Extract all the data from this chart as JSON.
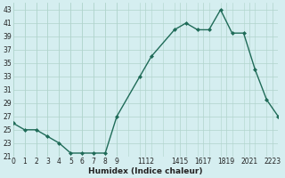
{
  "x": [
    0,
    1,
    2,
    3,
    4,
    5,
    6,
    7,
    8,
    9,
    11,
    12,
    14,
    15,
    16,
    17,
    18,
    19,
    20,
    21,
    22,
    23
  ],
  "y": [
    26,
    25,
    25,
    24,
    23,
    21.5,
    21.5,
    21.5,
    21.5,
    27,
    33,
    36,
    40,
    41,
    40,
    40,
    43,
    39.5,
    39.5,
    34,
    29.5,
    27
  ],
  "line_color": "#1f6b58",
  "marker": "D",
  "marker_size": 2.0,
  "bg_color": "#d5eef0",
  "grid_color": "#b0d4cc",
  "xlabel": "Humidex (Indice chaleur)",
  "xlim": [
    0,
    23
  ],
  "ylim": [
    21,
    44
  ],
  "yticks": [
    21,
    23,
    25,
    27,
    29,
    31,
    33,
    35,
    37,
    39,
    41,
    43
  ],
  "font_color": "#222222",
  "linewidth": 1.0,
  "tick_fontsize": 5.5,
  "xlabel_fontsize": 6.5
}
